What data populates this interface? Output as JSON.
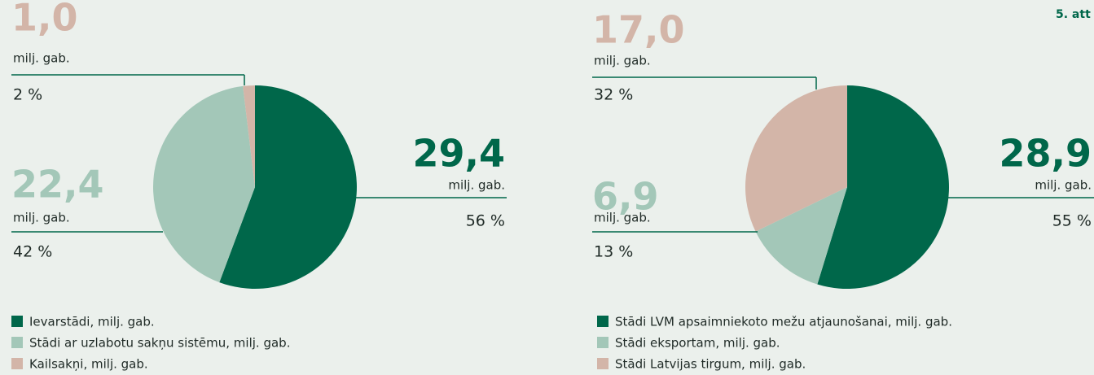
{
  "figure_label": "5. att",
  "chart_data": [
    {
      "type": "pie",
      "unit": "milj. gab.",
      "categories": [
        "Ievarstādi, milj. gab.",
        "Stādi ar uzlabotu sakņu sistēmu, milj. gab.",
        "Kailsakņi, milj. gab."
      ],
      "values": [
        29.4,
        22.4,
        1.0
      ],
      "value_labels": [
        "29,4",
        "22,4",
        "1,0"
      ],
      "percent_labels": [
        "56 %",
        "42 %",
        "2 %"
      ],
      "colors": [
        "#00674a",
        "#a3c7b8",
        "#d3b5a8"
      ]
    },
    {
      "type": "pie",
      "unit": "milj. gab.",
      "categories": [
        "Stādi LVM apsaimniekoto mežu atjaunošanai, milj. gab.",
        "Stādi eksportam, milj. gab.",
        "Stādi Latvijas tirgum, milj. gab."
      ],
      "values": [
        28.9,
        6.9,
        17.0
      ],
      "value_labels": [
        "28,9",
        "6,9",
        "17,0"
      ],
      "percent_labels": [
        "55 %",
        "13 %",
        "32 %"
      ],
      "colors": [
        "#00674a",
        "#a3c7b8",
        "#d3b5a8"
      ]
    }
  ]
}
